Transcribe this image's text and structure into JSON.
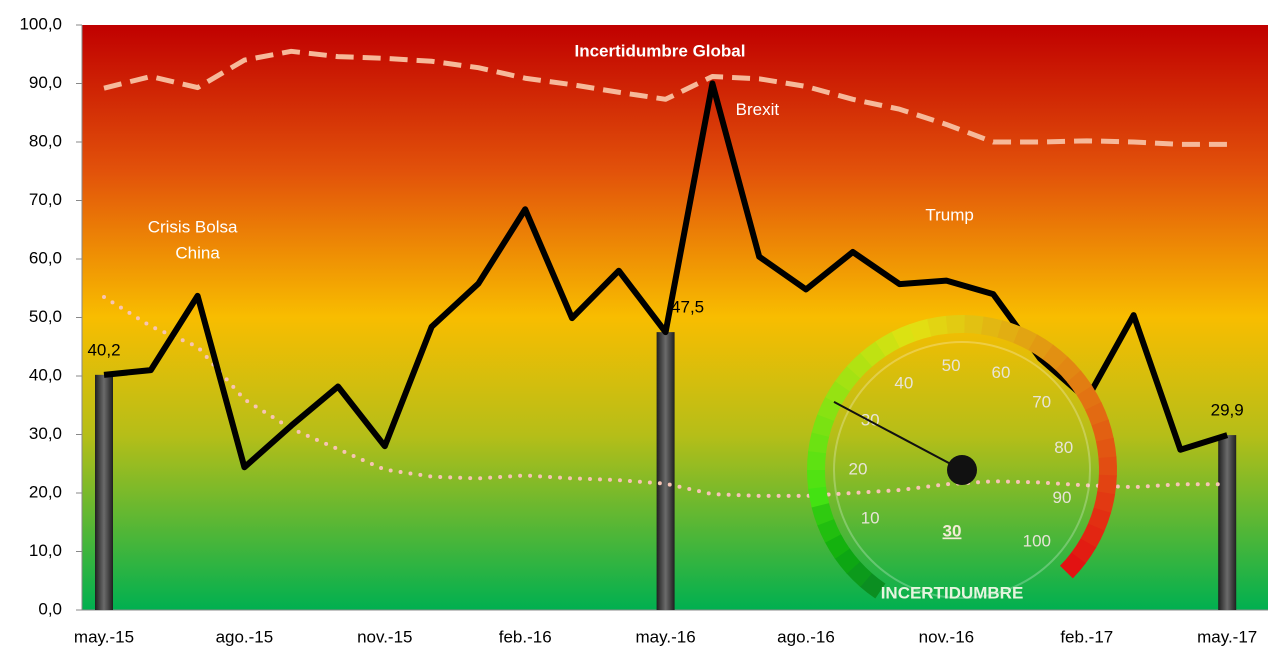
{
  "chart_data": {
    "type": "line",
    "title": "Incertidumbre Global",
    "categories": [
      "may.-15",
      null,
      null,
      "ago.-15",
      null,
      null,
      "nov.-15",
      null,
      null,
      "feb.-16",
      null,
      null,
      "may.-16",
      null,
      null,
      "ago.-16",
      null,
      null,
      "nov.-16",
      null,
      null,
      "feb.-17",
      null,
      null,
      "may.-17"
    ],
    "ylim": [
      0,
      100
    ],
    "yticks": [
      {
        "value": 0,
        "label": "0,0"
      },
      {
        "value": 10,
        "label": "10,0"
      },
      {
        "value": 20,
        "label": "20,0"
      },
      {
        "value": 30,
        "label": "30,0"
      },
      {
        "value": 40,
        "label": "40,0"
      },
      {
        "value": 50,
        "label": "50,0"
      },
      {
        "value": 60,
        "label": "60,0"
      },
      {
        "value": 70,
        "label": "70,0"
      },
      {
        "value": 80,
        "label": "80,0"
      },
      {
        "value": 90,
        "label": "90,0"
      },
      {
        "value": 100,
        "label": "100,0"
      }
    ],
    "series": [
      {
        "style": "bar",
        "color": "#3a3a3a",
        "values": [
          40.2,
          null,
          null,
          null,
          null,
          null,
          null,
          null,
          null,
          null,
          null,
          null,
          47.5,
          null,
          null,
          null,
          null,
          null,
          null,
          null,
          null,
          null,
          null,
          null,
          29.9
        ],
        "value_labels": [
          "40,2",
          null,
          null,
          null,
          null,
          null,
          null,
          null,
          null,
          null,
          null,
          null,
          "47,5",
          null,
          null,
          null,
          null,
          null,
          null,
          null,
          null,
          null,
          null,
          null,
          "29,9"
        ]
      },
      {
        "style": "dashed",
        "color": "#f6b99a",
        "values": [
          89.2,
          91.2,
          89.3,
          94,
          95.5,
          94.6,
          94.3,
          93.8,
          92.7,
          90.9,
          89.8,
          88.5,
          87.3,
          91.2,
          90.8,
          89.5,
          87.3,
          85.6,
          83,
          80,
          80,
          80.2,
          80,
          79.6,
          79.6
        ]
      },
      {
        "style": "dotted",
        "color": "#f7c4b4",
        "values": [
          53.5,
          48.5,
          45,
          36,
          31,
          27.5,
          24,
          22.8,
          22.5,
          23,
          22.5,
          22.2,
          21.6,
          19.8,
          19.5,
          19.5,
          20,
          20.5,
          21.5,
          22,
          21.8,
          21.3,
          21,
          21.5,
          21.5
        ]
      },
      {
        "style": "solid",
        "color": "#000000",
        "values": [
          40.2,
          41,
          53.7,
          24.4,
          31.5,
          38.2,
          28,
          48.4,
          55.8,
          68.5,
          49.9,
          58,
          47.5,
          90,
          60.4,
          54.8,
          61.2,
          55.7,
          56.3,
          54,
          43,
          36,
          50.4,
          27.4,
          29.9
        ]
      }
    ],
    "annotations": [
      {
        "text": "Crisis Bolsa",
        "index": 2
      },
      {
        "text": "China",
        "index": 2
      },
      {
        "text": "Brexit",
        "index": 13
      },
      {
        "text": "Trump",
        "index": 17
      }
    ],
    "gauge": {
      "value": 30,
      "value_label": "30",
      "label": "INCERTIDUMBRE",
      "ticks": [
        10,
        20,
        30,
        40,
        50,
        60,
        70,
        80,
        90,
        100
      ],
      "range": [
        0,
        100
      ]
    }
  }
}
